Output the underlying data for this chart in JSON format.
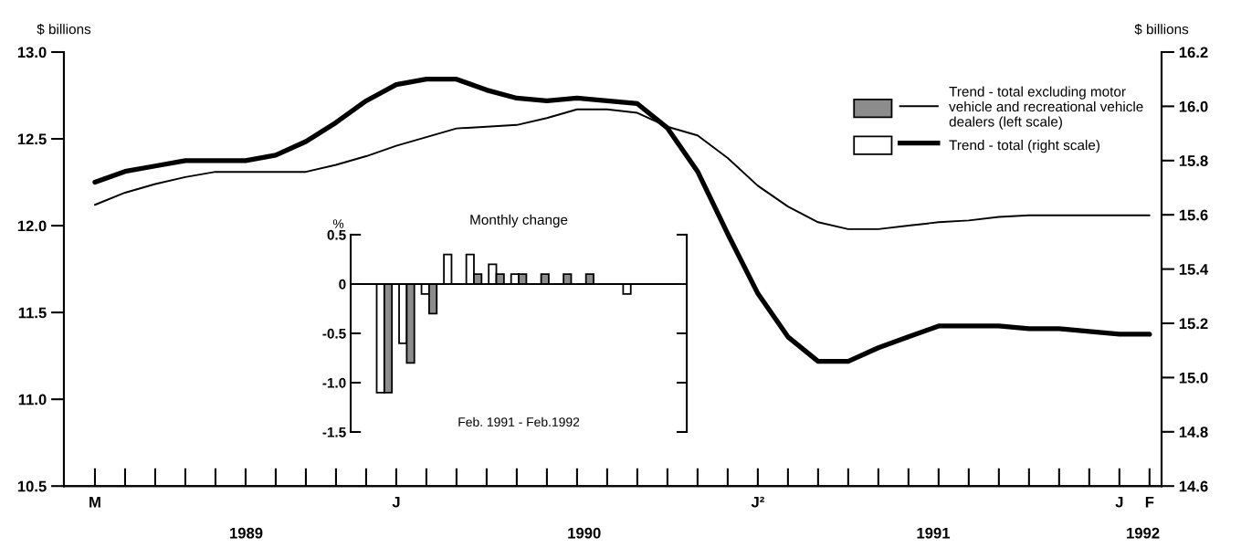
{
  "chart_data": [
    {
      "type": "line",
      "ylabel": "$ billions",
      "y2label": "$ billions",
      "categories": [
        "M",
        null,
        null,
        null,
        null,
        null,
        null,
        null,
        null,
        null,
        "J",
        null,
        null,
        null,
        null,
        null,
        null,
        null,
        null,
        null,
        null,
        null,
        "J²",
        null,
        null,
        null,
        null,
        null,
        null,
        null,
        null,
        null,
        null,
        null,
        "J",
        "F"
      ],
      "series": [
        {
          "name": "Trend - total excluding motor vehicle and recreational vehicle dealers (left scale)",
          "color": "#000000",
          "values": [
            12.12,
            12.19,
            12.24,
            12.28,
            12.31,
            12.31,
            12.31,
            12.31,
            12.35,
            12.4,
            12.46,
            12.51,
            12.56,
            12.57,
            12.58,
            12.62,
            12.67,
            12.67,
            12.65,
            12.57,
            12.52,
            12.39,
            12.23,
            12.11,
            12.02,
            11.98,
            11.98,
            12.0,
            12.02,
            12.03,
            12.05,
            12.06,
            12.06,
            12.06,
            12.06,
            12.06
          ]
        },
        {
          "name": "Trend - total (right scale)",
          "color": "#000000",
          "axis": "y2",
          "values": [
            15.72,
            15.76,
            15.78,
            15.8,
            15.8,
            15.8,
            15.82,
            15.87,
            15.94,
            16.02,
            16.08,
            16.1,
            16.1,
            16.06,
            16.03,
            16.02,
            16.03,
            16.02,
            16.01,
            15.92,
            15.76,
            15.53,
            15.31,
            15.15,
            15.06,
            15.06,
            15.11,
            15.15,
            15.19,
            15.19,
            15.19,
            15.18,
            15.18,
            15.17,
            15.16,
            15.16
          ]
        }
      ],
      "ylim": [
        10.5,
        13.0
      ],
      "yticks": [
        {
          "value": 10.5,
          "label": "10.5"
        },
        {
          "value": 11.0,
          "label": "11.0"
        },
        {
          "value": 11.5,
          "label": "11.5"
        },
        {
          "value": 12.0,
          "label": "12.0"
        },
        {
          "value": 12.5,
          "label": "12.5"
        },
        {
          "value": 13.0,
          "label": "13.0"
        }
      ],
      "y2lim": [
        14.6,
        16.2
      ],
      "y2ticks": [
        {
          "value": 14.6,
          "label": "14.6"
        },
        {
          "value": 14.8,
          "label": "14.8"
        },
        {
          "value": 15.0,
          "label": "15.0"
        },
        {
          "value": 15.2,
          "label": "15.2"
        },
        {
          "value": 15.4,
          "label": "15.4"
        },
        {
          "value": 15.6,
          "label": "15.6"
        },
        {
          "value": 15.8,
          "label": "15.8"
        },
        {
          "value": 16.0,
          "label": "16.0"
        },
        {
          "value": 16.2,
          "label": "16.2"
        }
      ],
      "annotations": [
        "1989",
        "1990",
        "1991",
        "1992"
      ],
      "legend": "top right",
      "grid": false
    },
    {
      "type": "bar",
      "title": "Monthly change",
      "ylabel": "%",
      "categories": [
        null,
        null,
        null,
        null,
        null,
        null,
        null,
        null,
        null,
        null,
        null,
        null,
        null,
        null,
        null
      ],
      "series": [
        {
          "color": "#ffffff",
          "values": [
            null,
            -1.1,
            -0.6,
            -0.1,
            0.3,
            0.3,
            0.2,
            0.1,
            0,
            0,
            0,
            0,
            -0.1,
            0,
            null
          ]
        },
        {
          "color": "#8c8c8c",
          "values": [
            null,
            -1.1,
            -0.8,
            -0.3,
            0,
            0.1,
            0.1,
            0.1,
            0.1,
            0.1,
            0.1,
            0,
            0,
            0,
            null
          ]
        }
      ],
      "ylim": [
        -1.5,
        0.5
      ],
      "yticks": [
        {
          "value": -1.5,
          "label": "-1.5"
        },
        {
          "value": -1.0,
          "label": "-1.0"
        },
        {
          "value": -0.5,
          "label": "-0.5"
        },
        {
          "value": 0,
          "label": "0"
        },
        {
          "value": 0.5,
          "label": "0.5"
        }
      ],
      "annotations": [
        "Feb. 1991 - Feb.1992"
      ],
      "ref_lines": [
        {
          "axis": "y",
          "value": 0,
          "color": "#000000"
        }
      ],
      "tick_labels": "y",
      "grid": false
    }
  ]
}
